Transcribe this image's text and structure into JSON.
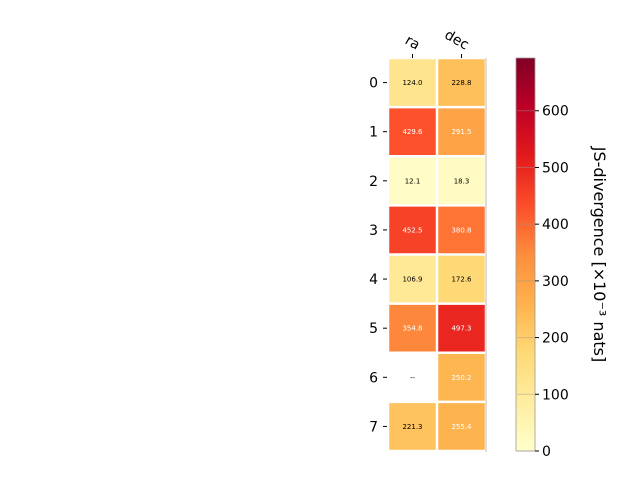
{
  "chart_data": {
    "type": "heatmap",
    "columns": [
      "ra",
      "dec"
    ],
    "rows": [
      "0",
      "1",
      "2",
      "3",
      "4",
      "5",
      "6",
      "7"
    ],
    "values": [
      [
        124.0,
        228.8
      ],
      [
        429.6,
        291.5
      ],
      [
        12.1,
        18.3
      ],
      [
        452.5,
        380.8
      ],
      [
        106.9,
        172.6
      ],
      [
        354.8,
        497.3
      ],
      [
        null,
        250.2
      ],
      [
        221.3,
        255.4
      ]
    ],
    "cell_labels": [
      [
        "124.0",
        "228.8"
      ],
      [
        "429.6",
        "291.5"
      ],
      [
        "12.1",
        "18.3"
      ],
      [
        "452.5",
        "380.8"
      ],
      [
        "106.9",
        "172.6"
      ],
      [
        "354.8",
        "497.3"
      ],
      [
        "--",
        "250.2"
      ],
      [
        "221.3",
        "255.4"
      ]
    ],
    "colorbar": {
      "label": "JS-divergence [×10⁻³ nats]",
      "range": [
        0,
        693
      ],
      "ticks": [
        0,
        100,
        200,
        300,
        400,
        500,
        600
      ],
      "tick_labels": [
        "0",
        "100",
        "200",
        "300",
        "400",
        "500",
        "600"
      ],
      "colormap": "YlOrRd"
    },
    "colormap_stops": [
      "#ffffcc",
      "#ffeda0",
      "#fed976",
      "#feb24c",
      "#fd8d3c",
      "#fc4e2a",
      "#e31a1c",
      "#bd0026",
      "#800026"
    ]
  }
}
